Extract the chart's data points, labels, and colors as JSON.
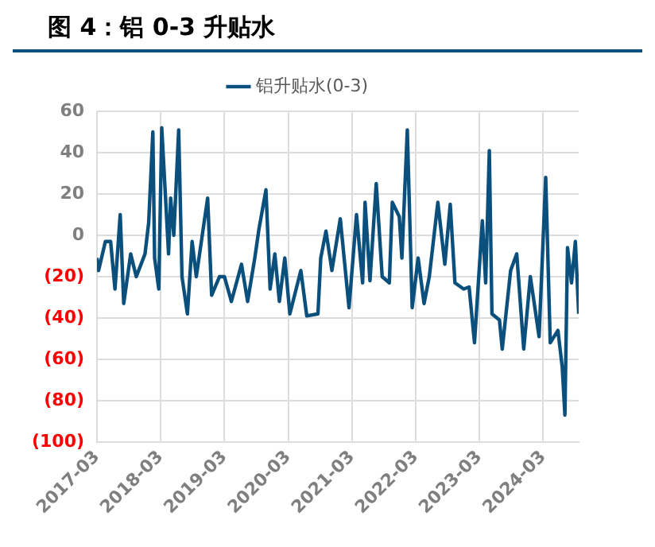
{
  "chart_data": {
    "type": "line",
    "title": "图 4：铝 0-3 升贴水",
    "series": [
      {
        "name": "铝升贴水(0-3)",
        "color": "#0b4f7c",
        "x": [
          "2017-03-01",
          "2017-03-10",
          "2017-04-18",
          "2017-05-18",
          "2017-06-12",
          "2017-07-12",
          "2017-08-01",
          "2017-09-10",
          "2017-10-12",
          "2017-12-01",
          "2017-12-22",
          "2018-01-15",
          "2018-01-25",
          "2018-02-18",
          "2018-03-07",
          "2018-03-25",
          "2018-04-15",
          "2018-04-27",
          "2018-05-15",
          "2018-06-12",
          "2018-07-01",
          "2018-08-01",
          "2018-08-28",
          "2018-09-21",
          "2018-10-25",
          "2018-11-25",
          "2018-12-18",
          "2019-02-01",
          "2019-03-01",
          "2019-04-10",
          "2019-06-07",
          "2019-07-12",
          "2019-08-22",
          "2019-09-15",
          "2019-10-25",
          "2019-11-18",
          "2019-12-15",
          "2020-01-10",
          "2020-02-10",
          "2020-03-10",
          "2020-05-12",
          "2020-06-15",
          "2020-08-18",
          "2020-09-03",
          "2020-10-03",
          "2020-11-06",
          "2020-12-24",
          "2021-02-12",
          "2021-03-27",
          "2021-05-01",
          "2021-05-15",
          "2021-06-12",
          "2021-07-18",
          "2021-08-21",
          "2021-10-01",
          "2021-10-18",
          "2021-11-27",
          "2021-12-12",
          "2022-01-12",
          "2022-02-09",
          "2022-03-15",
          "2022-04-18",
          "2022-05-18",
          "2022-07-06",
          "2022-08-15",
          "2022-09-15",
          "2022-10-12",
          "2022-12-01",
          "2023-01-01",
          "2023-02-01",
          "2023-03-18",
          "2023-04-06",
          "2023-04-27",
          "2023-05-12",
          "2023-06-24",
          "2023-07-10",
          "2023-08-27",
          "2023-10-01",
          "2023-11-10",
          "2023-12-18",
          "2024-02-06",
          "2024-03-15",
          "2024-04-10",
          "2024-05-24",
          "2024-06-18",
          "2024-07-03",
          "2024-07-18",
          "2024-08-10",
          "2024-09-01",
          "2024-09-20"
        ],
        "values": [
          -11,
          -17,
          -3,
          -3,
          -26,
          10,
          -33,
          -9,
          -20,
          -9,
          6,
          50,
          -11,
          -26,
          52,
          24,
          -9,
          18,
          0,
          51,
          -20,
          -38,
          -3,
          -20,
          0,
          18,
          -29,
          -20,
          -20,
          -32,
          -14,
          -32,
          -11,
          3,
          22,
          -26,
          -9,
          -32,
          -11,
          -38,
          -17,
          -39,
          -38,
          -11,
          2,
          -17,
          8,
          -35,
          10,
          -23,
          16,
          -22,
          25,
          -20,
          -23,
          16,
          9,
          -11,
          51,
          -35,
          -11,
          -33,
          -20,
          16,
          -14,
          15,
          -23,
          -26,
          -25,
          -52,
          7,
          -23,
          41,
          -38,
          -41,
          -55,
          -17,
          -9,
          -55,
          -20,
          -49,
          28,
          -52,
          -46,
          -64,
          -87,
          -6,
          -23,
          -3,
          -38
        ]
      }
    ],
    "xlim": [
      "2017-03-01",
      "2024-09-20"
    ],
    "xticks": [
      "2017-03",
      "2018-03",
      "2019-03",
      "2020-03",
      "2021-03",
      "2022-03",
      "2023-03",
      "2024-03"
    ],
    "ylim": [
      -100,
      60
    ],
    "yticks": [
      {
        "value": -100,
        "label": "(100)"
      },
      {
        "value": -80,
        "label": "(80)"
      },
      {
        "value": -60,
        "label": "(60)"
      },
      {
        "value": -40,
        "label": "(40)"
      },
      {
        "value": -20,
        "label": "(20)"
      },
      0,
      20,
      40,
      60
    ],
    "grid": true,
    "legend": "top",
    "marker": "none",
    "line_style": "solid"
  }
}
